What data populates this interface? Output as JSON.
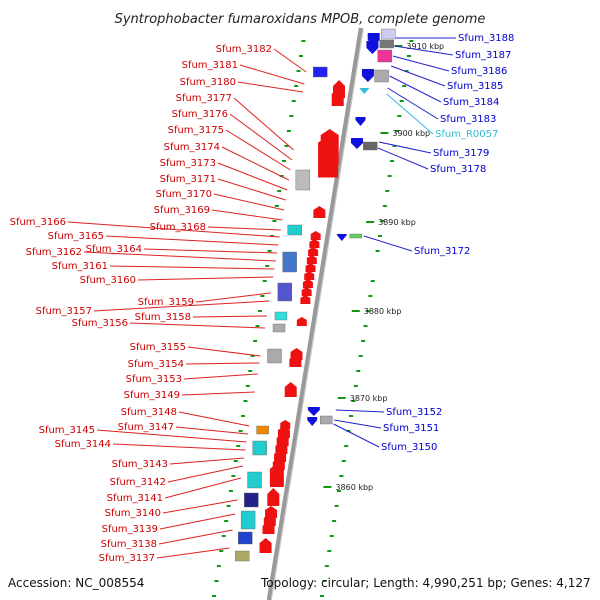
{
  "title": "Syntrophobacter fumaroxidans MPOB, complete genome",
  "footer": {
    "accession": "Accession: NC_008554",
    "topology": "Topology: circular; Length: 4,990,251 bp; Genes: 4,127"
  },
  "colors": {
    "forward": "#ee1111",
    "reverse": "#1111dd",
    "rna": "#33bbdd",
    "backbone": "#999999",
    "tick": "#119911"
  },
  "ruler_ticks": [
    "3910 kbp",
    "3900 kbp",
    "3890 kbp",
    "3880 kbp",
    "3870 kbp",
    "3860 kbp"
  ],
  "left_genes": [
    "Sfum_3182",
    "Sfum_3181",
    "Sfum_3180",
    "Sfum_3177",
    "Sfum_3176",
    "Sfum_3175",
    "Sfum_3174",
    "Sfum_3173",
    "Sfum_3171",
    "Sfum_3170",
    "Sfum_3169",
    "Sfum_3168",
    "Sfum_3166",
    "Sfum_3165",
    "Sfum_3164",
    "Sfum_3162",
    "Sfum_3161",
    "Sfum_3160",
    "Sfum_3159",
    "Sfum_3157",
    "Sfum_3158",
    "Sfum_3156",
    "Sfum_3155",
    "Sfum_3154",
    "Sfum_3153",
    "Sfum_3149",
    "Sfum_3148",
    "Sfum_3147",
    "Sfum_3145",
    "Sfum_3144",
    "Sfum_3143",
    "Sfum_3142",
    "Sfum_3141",
    "Sfum_3140",
    "Sfum_3139",
    "Sfum_3138",
    "Sfum_3137"
  ],
  "right_genes": [
    {
      "name": "Sfum_3188",
      "kind": "reverse"
    },
    {
      "name": "Sfum_3187",
      "kind": "reverse"
    },
    {
      "name": "Sfum_3186",
      "kind": "reverse"
    },
    {
      "name": "Sfum_3185",
      "kind": "reverse"
    },
    {
      "name": "Sfum_3184",
      "kind": "reverse"
    },
    {
      "name": "Sfum_3183",
      "kind": "reverse"
    },
    {
      "name": "Sfum_R0057",
      "kind": "rna"
    },
    {
      "name": "Sfum_3179",
      "kind": "reverse"
    },
    {
      "name": "Sfum_3178",
      "kind": "reverse"
    },
    {
      "name": "Sfum_3172",
      "kind": "reverse"
    },
    {
      "name": "Sfum_3152",
      "kind": "reverse"
    },
    {
      "name": "Sfum_3151",
      "kind": "reverse"
    },
    {
      "name": "Sfum_3150",
      "kind": "reverse"
    }
  ]
}
